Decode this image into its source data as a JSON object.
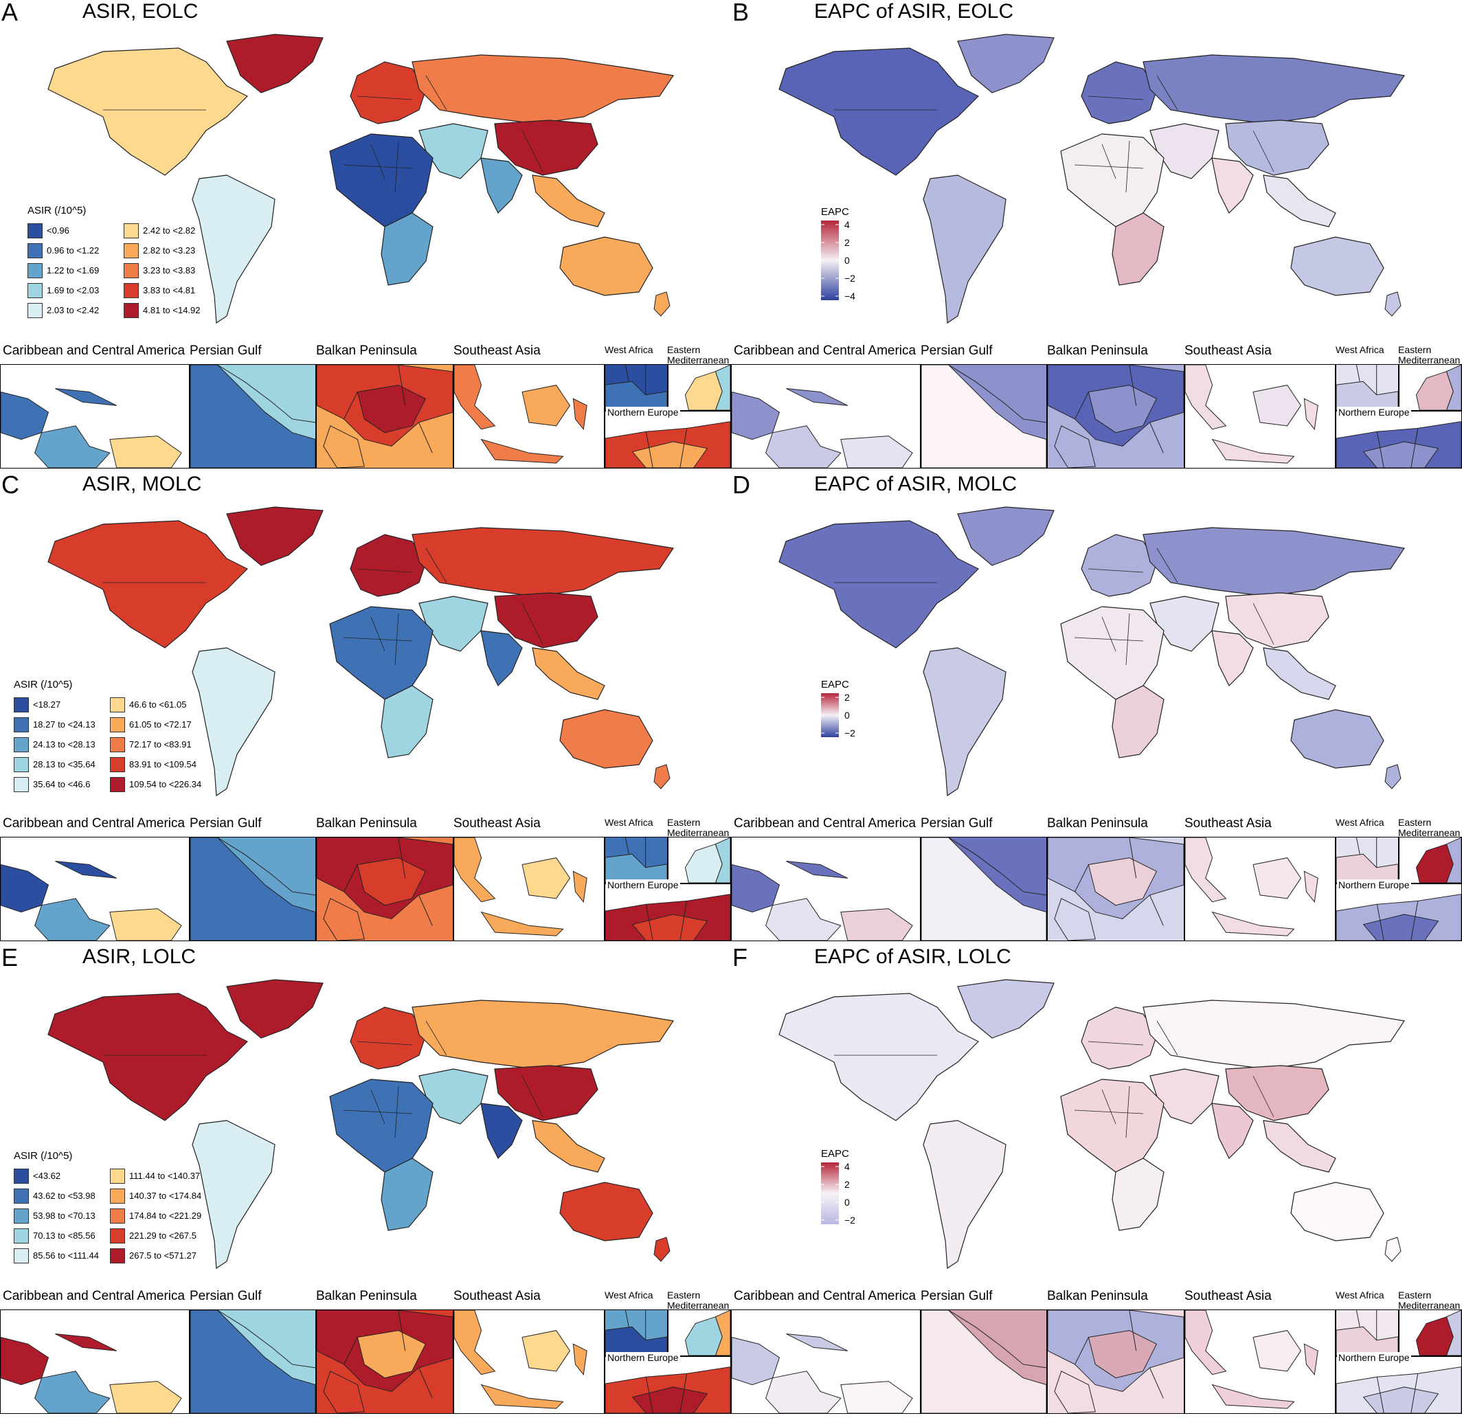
{
  "panels": [
    {
      "letter": "A",
      "title": "ASIR, EOLC",
      "kind": "asir",
      "legend_title": "ASIR (/10^5)",
      "legend": [
        {
          "label": "<0.96",
          "color": "#2c4ea0"
        },
        {
          "label": "0.96 to <1.22",
          "color": "#3f72b4"
        },
        {
          "label": "1.22 to <1.69",
          "color": "#64a3cc"
        },
        {
          "label": "1.69 to <2.03",
          "color": "#9fd5e1"
        },
        {
          "label": "2.03 to <2.42",
          "color": "#d9eef3"
        },
        {
          "label": "2.42 to <2.82",
          "color": "#fcd98f"
        },
        {
          "label": "2.82 to <3.23",
          "color": "#f9a95a"
        },
        {
          "label": "3.23 to <3.83",
          "color": "#f07c4a"
        },
        {
          "label": "3.83 to <4.81",
          "color": "#d83d2c"
        },
        {
          "label": "4.81 to <14.92",
          "color": "#ae1c2b"
        }
      ],
      "regions": {
        "na": "#fcd98f",
        "greenland": "#ae1c2b",
        "sa": "#d9eef3",
        "europe": "#d83d2c",
        "russia": "#f07c4a",
        "china": "#ae1c2b",
        "africa": "#2c4ea0",
        "africa_s": "#64a3cc",
        "mideast": "#9fd5e1",
        "india": "#64a3cc",
        "sea": "#f9a95a",
        "australia": "#f9a95a"
      }
    },
    {
      "letter": "B",
      "title": "EAPC of ASIR, EOLC",
      "kind": "eapc",
      "legend_title": "EAPC",
      "ticks": [
        "4",
        "2",
        "0",
        "−2",
        "−4"
      ],
      "grad_top": "#b5253a",
      "grad_mid": "#f5f0f5",
      "grad_bot": "#2e3f9c",
      "regions": {
        "na": "#5a64b6",
        "greenland": "#8d92cc",
        "sa": "#b7badf",
        "europe": "#6a72bd",
        "russia": "#7b82c4",
        "china": "#b7badf",
        "africa": "#f4eef3",
        "africa_s": "#e3b9c3",
        "mideast": "#ece3ef",
        "india": "#f1dde2",
        "sea": "#e6e6f1",
        "australia": "#c5c8e5"
      }
    },
    {
      "letter": "C",
      "title": "ASIR, MOLC",
      "kind": "asir",
      "legend_title": "ASIR (/10^5)",
      "legend": [
        {
          "label": "<18.27",
          "color": "#2c4ea0"
        },
        {
          "label": "18.27 to <24.13",
          "color": "#3f72b4"
        },
        {
          "label": "24.13 to <28.13",
          "color": "#64a3cc"
        },
        {
          "label": "28.13 to <35.64",
          "color": "#9fd5e1"
        },
        {
          "label": "35.64 to <46.6",
          "color": "#d9eef3"
        },
        {
          "label": "46.6 to <61.05",
          "color": "#fcd98f"
        },
        {
          "label": "61.05 to <72.17",
          "color": "#f9a95a"
        },
        {
          "label": "72.17 to <83.91",
          "color": "#f07c4a"
        },
        {
          "label": "83.91 to <109.54",
          "color": "#d83d2c"
        },
        {
          "label": "109.54 to <226.34",
          "color": "#ae1c2b"
        }
      ],
      "regions": {
        "na": "#d83d2c",
        "greenland": "#ae1c2b",
        "sa": "#d9eef3",
        "europe": "#ae1c2b",
        "russia": "#d83d2c",
        "china": "#ae1c2b",
        "africa": "#3f72b4",
        "africa_s": "#9fd5e1",
        "mideast": "#9fd5e1",
        "india": "#3f72b4",
        "sea": "#f9a95a",
        "australia": "#f07c4a"
      }
    },
    {
      "letter": "D",
      "title": "EAPC of ASIR, MOLC",
      "kind": "eapc",
      "legend_title": "EAPC",
      "ticks": [
        "2",
        "0",
        "−2"
      ],
      "grad_top": "#b5253a",
      "grad_mid": "#f5f0f5",
      "grad_bot": "#2e3f9c",
      "regions": {
        "na": "#6a72bd",
        "greenland": "#8d92cc",
        "sa": "#c8cae6",
        "europe": "#aeb1dc",
        "russia": "#8d92cc",
        "china": "#f1dde2",
        "africa": "#f1e7ee",
        "africa_s": "#ebd0d8",
        "mideast": "#e3e3f1",
        "india": "#f1dde2",
        "sea": "#d6d7ec",
        "australia": "#aeb1dc"
      }
    },
    {
      "letter": "E",
      "title": "ASIR, LOLC",
      "kind": "asir",
      "legend_title": "ASIR (/10^5)",
      "legend": [
        {
          "label": "<43.62",
          "color": "#2c4ea0"
        },
        {
          "label": "43.62 to <53.98",
          "color": "#3f72b4"
        },
        {
          "label": "53.98 to <70.13",
          "color": "#64a3cc"
        },
        {
          "label": "70.13 to <85.56",
          "color": "#9fd5e1"
        },
        {
          "label": "85.56 to <111.44",
          "color": "#d9eef3"
        },
        {
          "label": "111.44 to <140.37",
          "color": "#fcd98f"
        },
        {
          "label": "140.37 to <174.84",
          "color": "#f9a95a"
        },
        {
          "label": "174.84 to <221.29",
          "color": "#f07c4a"
        },
        {
          "label": "221.29 to <267.5",
          "color": "#d83d2c"
        },
        {
          "label": "267.5 to <571.27",
          "color": "#ae1c2b"
        }
      ],
      "regions": {
        "na": "#ae1c2b",
        "greenland": "#ae1c2b",
        "sa": "#d9eef3",
        "europe": "#d83d2c",
        "russia": "#f9a95a",
        "china": "#ae1c2b",
        "africa": "#3f72b4",
        "africa_s": "#64a3cc",
        "mideast": "#9fd5e1",
        "india": "#2c4ea0",
        "sea": "#f9a95a",
        "australia": "#d83d2c"
      }
    },
    {
      "letter": "F",
      "title": "EAPC of ASIR, LOLC",
      "kind": "eapc",
      "legend_title": "EAPC",
      "ticks": [
        "4",
        "2",
        "0",
        "−2"
      ],
      "grad_top": "#b5253a",
      "grad_mid": "#f7f2f5",
      "grad_bot": "#b9b7e3",
      "regions": {
        "na": "#e9e9f4",
        "greenland": "#c9c9e8",
        "sa": "#f3edf3",
        "europe": "#efd7dd",
        "russia": "#fbf5f6",
        "china": "#e4b6c0",
        "africa": "#f1d6dc",
        "africa_s": "#f6eff2",
        "mideast": "#f1dde2",
        "india": "#ecc9d2",
        "sea": "#f0dbe1",
        "australia": "#fdf9fa"
      }
    }
  ],
  "inset_labels": {
    "caribbean": "Caribbean and Central America",
    "persian": "Persian Gulf",
    "balkan": "Balkan Peninsula",
    "sea": "Southeast Asia",
    "west_africa": "West Africa",
    "east_med_1": "Eastern",
    "east_med_2": "Mediterranean",
    "north_europe": "Northern Europe"
  },
  "insets": [
    {
      "carib_sea": "#3f72b4",
      "carib_land": "#64a3cc",
      "carib_s": "#fcd98f",
      "persian_a": "#3f72b4",
      "persian_b": "#9fd5e1",
      "balkan_a": "#d83d2c",
      "balkan_b": "#ae1c2b",
      "balkan_c": "#f9a95a",
      "sea_a": "#f07c4a",
      "sea_b": "#f9a95a",
      "wa_a": "#2c4ea0",
      "wa_b": "#3f72b4",
      "em_a": "#fcd98f",
      "em_b": "#9fd5e1",
      "ne_a": "#d83d2c",
      "ne_b": "#f9a95a"
    },
    {
      "carib_sea": "#8d92cc",
      "carib_land": "#c8cae6",
      "carib_s": "#e3e3f1",
      "persian_a": "#fbf3f5",
      "persian_b": "#8d92cc",
      "balkan_a": "#5a64b6",
      "balkan_b": "#8d92cc",
      "balkan_c": "#aeb1dc",
      "sea_a": "#f1dde2",
      "sea_b": "#ece3ef",
      "wa_a": "#e3e3f1",
      "wa_b": "#c8cae6",
      "em_a": "#e3b9c3",
      "em_b": "#aeb1dc",
      "ne_a": "#5a64b6",
      "ne_b": "#8d92cc"
    },
    {
      "carib_sea": "#2c4ea0",
      "carib_land": "#64a3cc",
      "carib_s": "#fcd98f",
      "persian_a": "#3f72b4",
      "persian_b": "#64a3cc",
      "balkan_a": "#ae1c2b",
      "balkan_b": "#d83d2c",
      "balkan_c": "#f07c4a",
      "sea_a": "#f9a95a",
      "sea_b": "#fcd98f",
      "wa_a": "#3f72b4",
      "wa_b": "#64a3cc",
      "em_a": "#d9eef3",
      "em_b": "#9fd5e1",
      "ne_a": "#ae1c2b",
      "ne_b": "#d83d2c"
    },
    {
      "carib_sea": "#6a72bd",
      "carib_land": "#e3e3f1",
      "carib_s": "#ebd0d8",
      "persian_a": "#f1f0f7",
      "persian_b": "#6a72bd",
      "balkan_a": "#aeb1dc",
      "balkan_b": "#ebd0d8",
      "balkan_c": "#d6d7ec",
      "sea_a": "#f1dde2",
      "sea_b": "#f5e7eb",
      "wa_a": "#e3e3f1",
      "wa_b": "#ebd0d8",
      "em_a": "#ae1c2b",
      "em_b": "#aeb1dc",
      "ne_a": "#aeb1dc",
      "ne_b": "#6a72bd"
    },
    {
      "carib_sea": "#ae1c2b",
      "carib_land": "#64a3cc",
      "carib_s": "#fcd98f",
      "persian_a": "#3f72b4",
      "persian_b": "#9fd5e1",
      "balkan_a": "#ae1c2b",
      "balkan_b": "#f9a95a",
      "balkan_c": "#d83d2c",
      "sea_a": "#f9a95a",
      "sea_b": "#fcd98f",
      "wa_a": "#64a3cc",
      "wa_b": "#2c4ea0",
      "em_a": "#9fd5e1",
      "em_b": "#f9a95a",
      "ne_a": "#d83d2c",
      "ne_b": "#ae1c2b"
    },
    {
      "carib_sea": "#c8cae6",
      "carib_land": "#f3edf3",
      "carib_s": "#fbf5f6",
      "persian_a": "#f6e9ec",
      "persian_b": "#d7a4b1",
      "balkan_a": "#aeb1dc",
      "balkan_b": "#d9a9b5",
      "balkan_c": "#f1dde2",
      "sea_a": "#efd0d8",
      "sea_b": "#f7ecef",
      "wa_a": "#f1e7ee",
      "wa_b": "#ebd0d8",
      "em_a": "#ae1c2b",
      "em_b": "#c8cae6",
      "ne_a": "#e3e3f1",
      "ne_b": "#c8cae6"
    }
  ]
}
